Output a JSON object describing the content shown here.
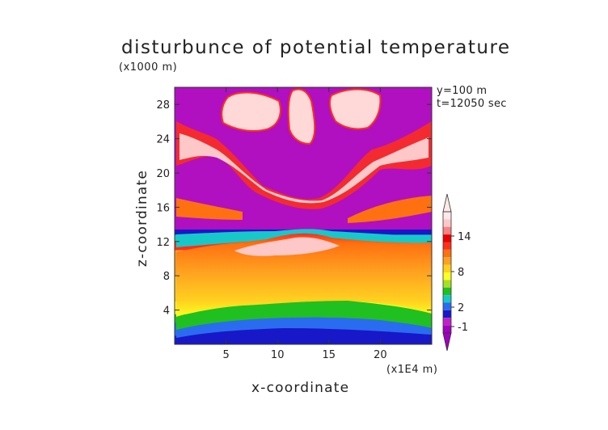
{
  "chart_data": {
    "type": "heatmap",
    "title": "disturbunce of potential temperature",
    "xlabel": "x-coordinate",
    "ylabel": "z-coordinate",
    "x_scale_label": "(x1E4 m)",
    "z_scale_label": "(x1000 m)",
    "annotations": [
      "y=100 m",
      "t=12050 sec"
    ],
    "x_ticks": [
      "5",
      "10",
      "15",
      "20"
    ],
    "y_ticks": [
      "4",
      "8",
      "12",
      "16",
      "20",
      "24",
      "28"
    ],
    "xlim": [
      0,
      25
    ],
    "ylim": [
      0,
      30
    ],
    "colorbar": {
      "tick_labels": [
        "14",
        "8",
        "2",
        "-1"
      ],
      "colors": [
        "#a000c0",
        "#c020c8",
        "#1818c8",
        "#2a6cf0",
        "#18c8c8",
        "#20c020",
        "#a8e020",
        "#ffff20",
        "#ffd020",
        "#ffa020",
        "#ff7010",
        "#ff3018",
        "#e80000",
        "#ff8080",
        "#ffc8c8",
        "#ffe8e8"
      ],
      "extend": "both"
    },
    "layers": [
      {
        "z": [
          0,
          1
        ],
        "color": "#1818c8"
      },
      {
        "z": [
          1,
          2.5
        ],
        "color": "#2a6cf0"
      },
      {
        "z": [
          2.5,
          3.5
        ],
        "color": "#20c020"
      },
      {
        "z": [
          3.5,
          5
        ],
        "color": "#ffff20"
      },
      {
        "z": [
          5,
          8
        ],
        "color": "#ffd020"
      },
      {
        "z": [
          8,
          11
        ],
        "color": "#ffa020"
      },
      {
        "z": [
          11,
          12
        ],
        "color": "#ff3018"
      },
      {
        "z": [
          12,
          12.8
        ],
        "color": "#18c8c8"
      },
      {
        "z": [
          12.8,
          13.4
        ],
        "color": "#1818c8"
      },
      {
        "z": [
          13.4,
          30
        ],
        "color": "#b010c0"
      }
    ]
  }
}
